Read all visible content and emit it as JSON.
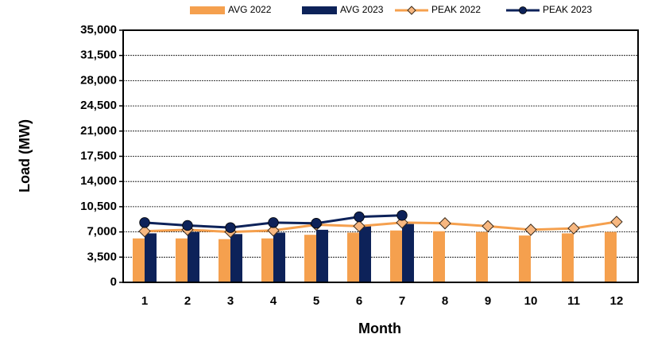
{
  "chart_data": {
    "type": "combo",
    "categories": [
      "1",
      "2",
      "3",
      "4",
      "5",
      "6",
      "7",
      "8",
      "9",
      "10",
      "11",
      "12"
    ],
    "x_label": "Month",
    "y_label": "Load (MW)",
    "ylim": [
      0,
      35000
    ],
    "yticks": [
      0,
      {
        "value": 3500,
        "label": "3,500"
      },
      {
        "value": 7000,
        "label": "7,000"
      },
      {
        "value": 10500,
        "label": "10,500"
      },
      {
        "value": 14000,
        "label": "14,000"
      },
      {
        "value": 17500,
        "label": "17,500"
      },
      {
        "value": 21000,
        "label": "21,000"
      },
      {
        "value": 24500,
        "label": "24,500"
      },
      {
        "value": 28000,
        "label": "28,000"
      },
      {
        "value": 31500,
        "label": "31,500"
      },
      {
        "value": 35000,
        "label": "35,000"
      }
    ],
    "grid": true,
    "legend": "top",
    "series": [
      {
        "name": "AVG 2022",
        "type": "bar",
        "color": "#f5a04e",
        "values": [
          6100,
          6100,
          6000,
          6100,
          6600,
          6900,
          7200,
          7100,
          7000,
          6500,
          6800,
          7000
        ]
      },
      {
        "name": "AVG 2023",
        "type": "bar",
        "color": "#0d2259",
        "values": [
          6800,
          7000,
          6700,
          6900,
          7300,
          7900,
          8100,
          null,
          null,
          null,
          null,
          null
        ]
      },
      {
        "name": "PEAK 2022",
        "type": "line",
        "marker": "diamond",
        "color": "#f5a04e",
        "values": [
          7100,
          7300,
          7000,
          7200,
          8000,
          7800,
          8300,
          8200,
          7800,
          7300,
          7500,
          8400
        ]
      },
      {
        "name": "PEAK 2023",
        "type": "line",
        "marker": "circle",
        "color": "#0d2259",
        "values": [
          8300,
          7900,
          7600,
          8300,
          8200,
          9100,
          9300,
          null,
          null,
          null,
          null,
          null
        ]
      }
    ]
  }
}
